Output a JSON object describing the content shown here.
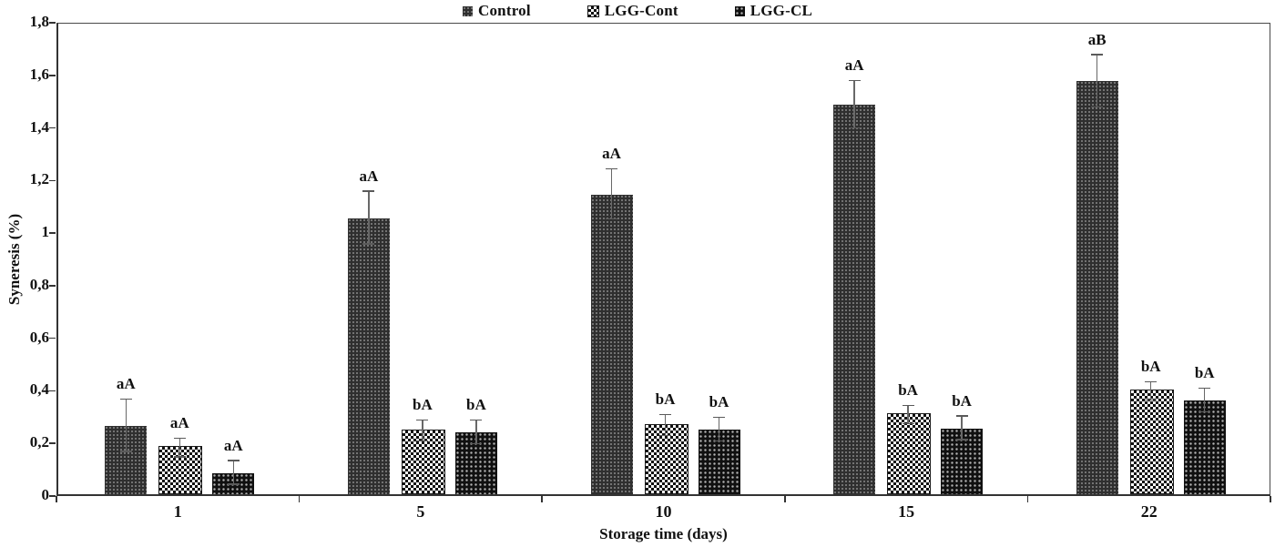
{
  "chart_data": {
    "type": "bar",
    "title": "",
    "xlabel": "Storage time (days)",
    "ylabel": "Syneresis (%)",
    "categories": [
      "1",
      "5",
      "10",
      "15",
      "22"
    ],
    "series": [
      {
        "name": "Control",
        "pattern": "dark-dots",
        "color": "#2f2f2f",
        "values": [
          0.26,
          1.05,
          1.14,
          1.48,
          1.57
        ],
        "errors": [
          0.1,
          0.1,
          0.095,
          0.09,
          0.1
        ],
        "point_labels": [
          "aA",
          "aA",
          "aA",
          "aA",
          "aB"
        ]
      },
      {
        "name": "LGG-Cont",
        "pattern": "light-checker",
        "color": "#9a9a9a",
        "values": [
          0.175,
          0.24,
          0.26,
          0.3,
          0.39
        ],
        "errors": [
          0.035,
          0.04,
          0.04,
          0.035,
          0.035
        ],
        "point_labels": [
          "aA",
          "bA",
          "bA",
          "bA",
          "bA"
        ]
      },
      {
        "name": "LGG-CL",
        "pattern": "dark-checker",
        "color": "#101010",
        "values": [
          0.08,
          0.235,
          0.245,
          0.25,
          0.355
        ],
        "errors": [
          0.045,
          0.045,
          0.045,
          0.045,
          0.045
        ],
        "point_labels": [
          "aA",
          "bA",
          "bA",
          "bA",
          "bA"
        ]
      }
    ],
    "ylim": [
      0,
      1.8
    ],
    "ytick_step": 0.2,
    "ytick_labels": [
      "0",
      "0,2",
      "0,4",
      "0,6",
      "0,8",
      "1",
      "1,2",
      "1,4",
      "1,6",
      "1,8"
    ],
    "legend_position": "top-center",
    "grid": "off",
    "axis_color": "#333333",
    "error_bar_color": "#686868"
  }
}
